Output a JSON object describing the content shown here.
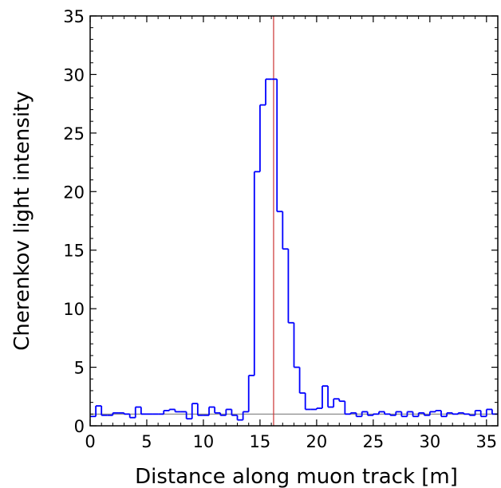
{
  "chart_data": {
    "type": "line",
    "style": "step-histogram",
    "xlabel": "Distance along muon track  [m]",
    "ylabel": "Cherenkov light intensity",
    "xlim": [
      0,
      36
    ],
    "ylim": [
      0,
      35
    ],
    "xticks": [
      0,
      5,
      10,
      15,
      20,
      25,
      30,
      35
    ],
    "yticks": [
      0,
      5,
      10,
      15,
      20,
      25,
      30,
      35
    ],
    "xtick_labels": [
      "0",
      "5",
      "10",
      "15",
      "20",
      "25",
      "30",
      "35"
    ],
    "ytick_labels": [
      "0",
      "5",
      "10",
      "15",
      "20",
      "25",
      "30",
      "35"
    ],
    "grid": false,
    "bin_width": 0.5,
    "series": [
      {
        "color": "#0000ff",
        "x_start": 0.0,
        "values": [
          0.8,
          1.7,
          0.9,
          0.9,
          1.1,
          1.1,
          1.0,
          0.7,
          1.6,
          1.0,
          1.0,
          1.0,
          1.0,
          1.3,
          1.4,
          1.2,
          1.2,
          0.6,
          1.9,
          0.9,
          0.9,
          1.6,
          1.1,
          0.9,
          1.4,
          0.9,
          0.5,
          1.2,
          4.3,
          21.7,
          27.4,
          29.6,
          29.6,
          18.3,
          15.1,
          8.8,
          5.0,
          2.8,
          1.4,
          1.4,
          1.5,
          3.4,
          1.6,
          2.3,
          2.1,
          1.0,
          1.1,
          0.8,
          1.2,
          0.9,
          1.0,
          1.2,
          1.0,
          0.9,
          1.2,
          0.8,
          1.2,
          0.8,
          1.1,
          0.9,
          1.2,
          1.3,
          0.8,
          1.1,
          1.0,
          1.1,
          1.0,
          0.9,
          1.3,
          0.8,
          1.4,
          1.0
        ]
      }
    ],
    "reference_lines": [
      {
        "orientation": "horizontal",
        "y": 1.0,
        "color": "#808080"
      },
      {
        "orientation": "vertical",
        "x": 16.2,
        "color": "#cc3333"
      }
    ]
  }
}
